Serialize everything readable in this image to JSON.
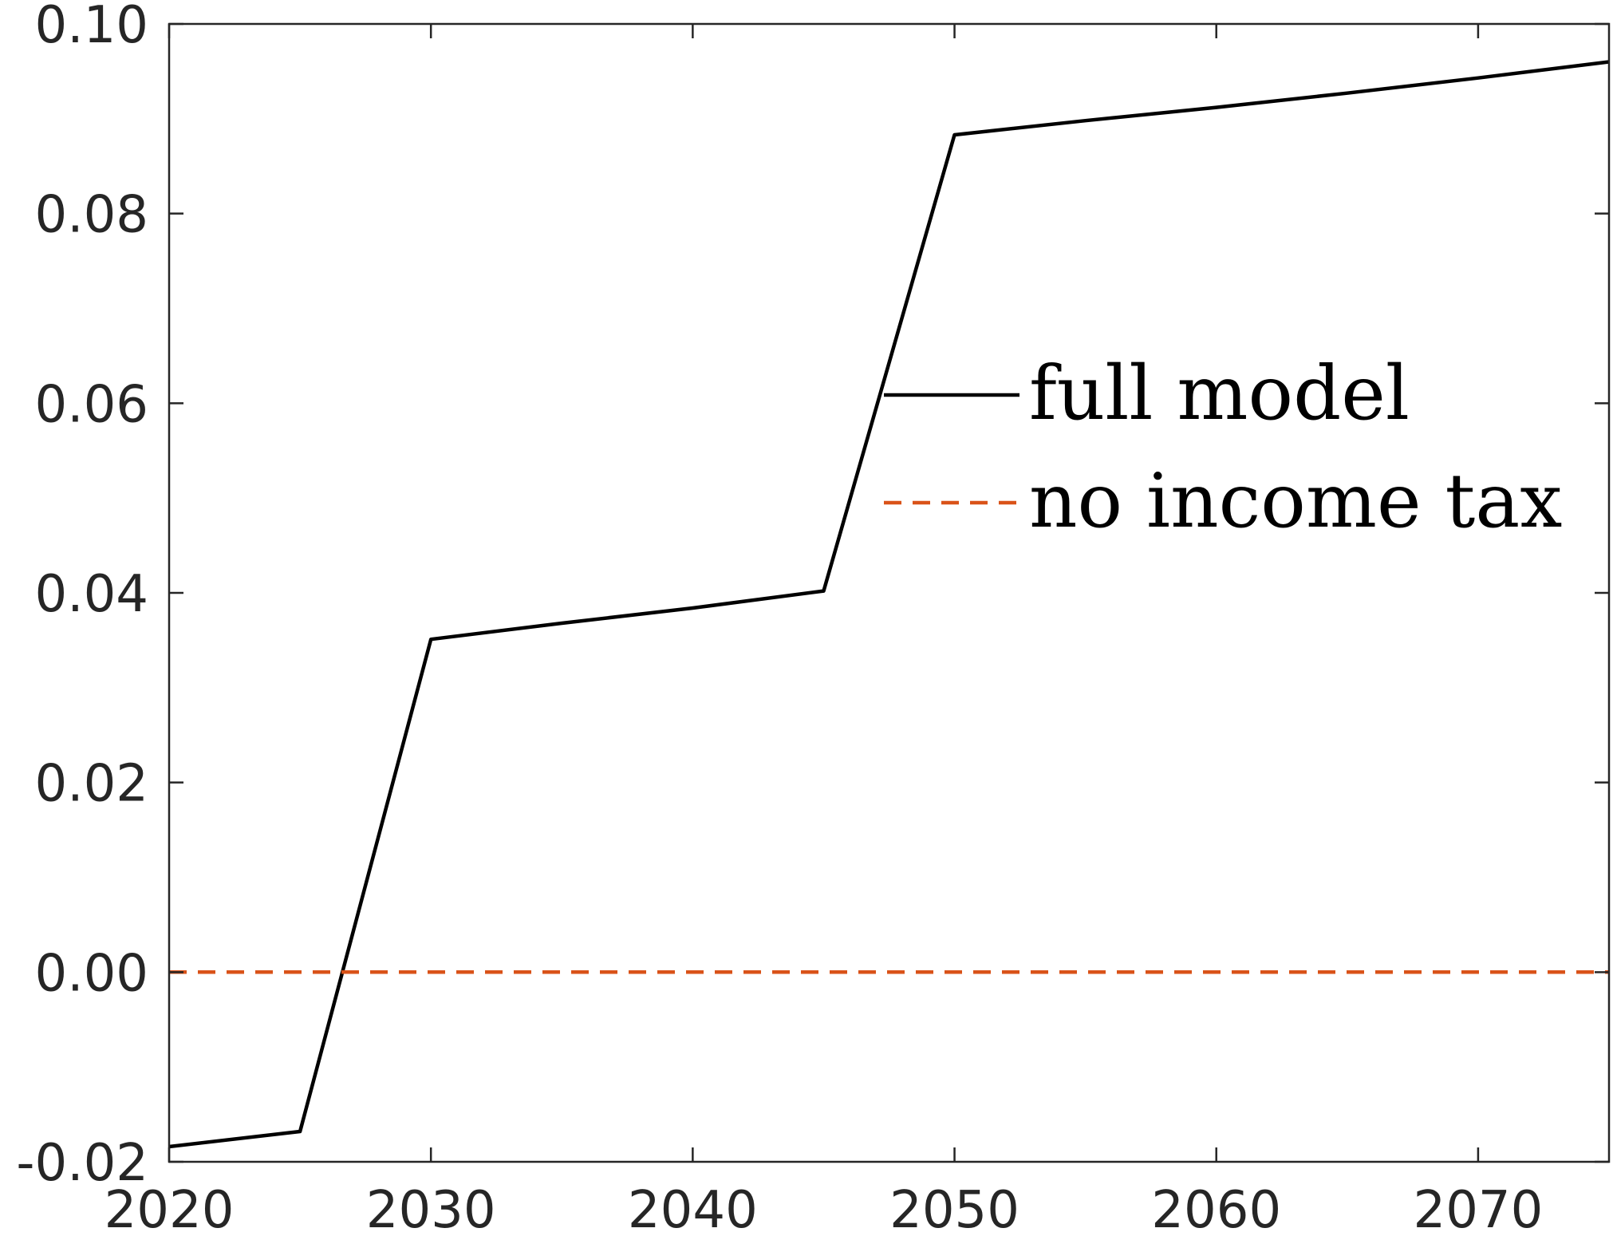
{
  "chart_data": {
    "type": "line",
    "title": "",
    "xlabel": "",
    "ylabel": "",
    "xlim": [
      2020,
      2075
    ],
    "ylim": [
      -0.02,
      0.1
    ],
    "x_ticks": [
      2020,
      2030,
      2040,
      2050,
      2060,
      2070
    ],
    "x_tick_labels": [
      "2020",
      "2030",
      "2040",
      "2050",
      "2060",
      "2070"
    ],
    "y_ticks": [
      -0.02,
      0.0,
      0.02,
      0.04,
      0.06,
      0.08,
      0.1
    ],
    "y_tick_labels": [
      "-0.02",
      "0.00",
      "0.02",
      "0.04",
      "0.06",
      "0.08",
      "0.10"
    ],
    "grid": false,
    "legend_position": "center-right",
    "series": [
      {
        "name": "full model",
        "color": "#000000",
        "line_style": "solid",
        "x": [
          2020,
          2025,
          2030,
          2035,
          2040,
          2045,
          2050,
          2055,
          2060,
          2065,
          2070,
          2075
        ],
        "y": [
          -0.0184,
          -0.0168,
          0.0351,
          0.0368,
          0.0384,
          0.0402,
          0.0883,
          0.0898,
          0.0912,
          0.0927,
          0.0943,
          0.096
        ]
      },
      {
        "name": "no income tax",
        "color": "#D95319",
        "line_style": "dashed",
        "x": [
          2020,
          2075
        ],
        "y": [
          0.0,
          0.0
        ]
      }
    ]
  }
}
